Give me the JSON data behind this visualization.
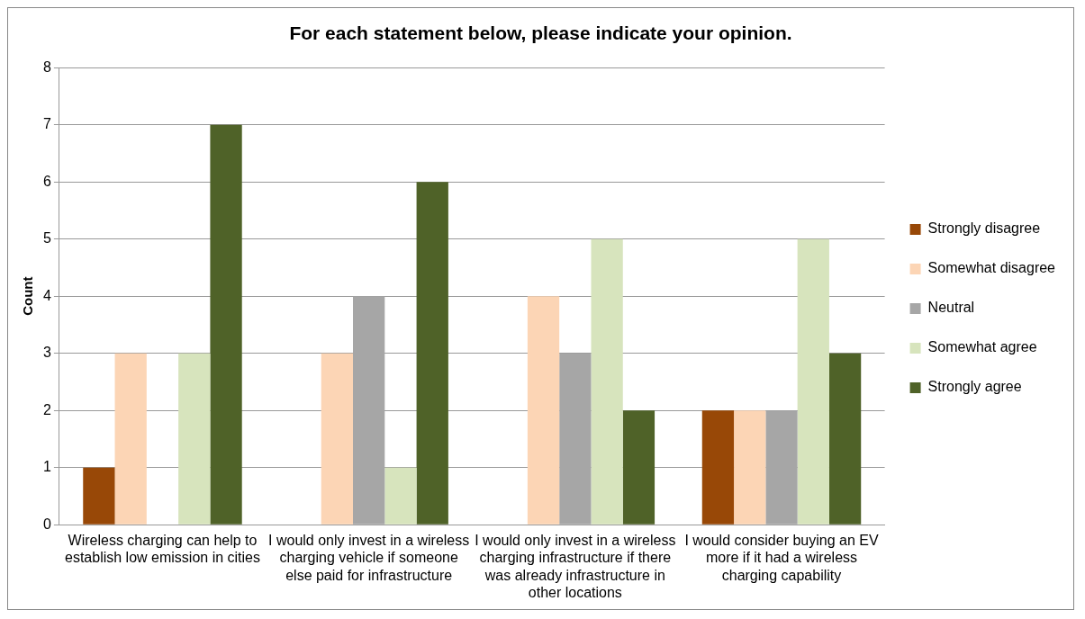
{
  "chart_data": {
    "type": "bar",
    "title": "For each statement below, please indicate your opinion.",
    "ylabel": "Count",
    "categories": [
      "Wireless charging can help to establish low emission in cities",
      "I would only invest in a wireless charging vehicle if someone else paid for infrastructure",
      "I would only invest in a wireless charging infrastructure if there was already infrastructure in other locations",
      "I would consider buying an EV more if it had a wireless charging capability"
    ],
    "series": [
      {
        "name": "Strongly disagree",
        "color": "#984807",
        "values": [
          1,
          0,
          0,
          2
        ]
      },
      {
        "name": "Somewhat disagree",
        "color": "#fcd5b5",
        "values": [
          3,
          3,
          4,
          2
        ]
      },
      {
        "name": "Neutral",
        "color": "#a6a6a6",
        "values": [
          0,
          4,
          3,
          2
        ]
      },
      {
        "name": "Somewhat agree",
        "color": "#d7e4bd",
        "values": [
          3,
          1,
          5,
          5
        ]
      },
      {
        "name": "Strongly agree",
        "color": "#4f6228",
        "values": [
          7,
          6,
          2,
          3
        ]
      }
    ],
    "ylim": [
      0,
      8
    ],
    "yticks": [
      0,
      1,
      2,
      3,
      4,
      5,
      6,
      7,
      8
    ],
    "grid": "y",
    "legend": "right"
  }
}
